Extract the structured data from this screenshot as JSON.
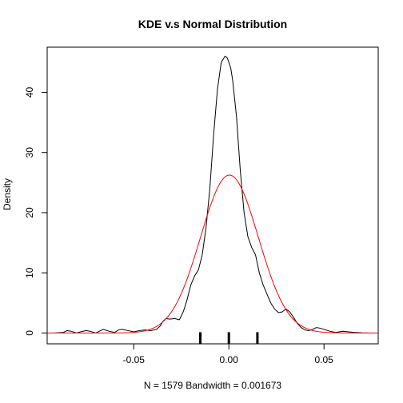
{
  "chart_data": {
    "type": "line",
    "title": "KDE v.s Normal Distribution",
    "xlabel": "N = 1579   Bandwidth = 0.001673",
    "ylabel": "Density",
    "xlim": [
      -0.0955,
      0.0785
    ],
    "ylim": [
      -1.8,
      47.5
    ],
    "x_ticks": [
      -0.05,
      0.0,
      0.05
    ],
    "x_tick_labels": [
      "-0.05",
      "0.00",
      "0.05"
    ],
    "y_ticks": [
      0,
      10,
      20,
      30,
      40
    ],
    "y_tick_labels": [
      "0",
      "10",
      "20",
      "30",
      "40"
    ],
    "grid": false,
    "legend": "none",
    "series": [
      {
        "color": "#000000",
        "x": [
          -0.092,
          -0.087,
          -0.085,
          -0.083,
          -0.08,
          -0.078,
          -0.075,
          -0.073,
          -0.07,
          -0.068,
          -0.066,
          -0.063,
          -0.06,
          -0.058,
          -0.056,
          -0.053,
          -0.05,
          -0.047,
          -0.044,
          -0.041,
          -0.038,
          -0.036,
          -0.0345,
          -0.033,
          -0.031,
          -0.0285,
          -0.026,
          -0.024,
          -0.022,
          -0.02,
          -0.018,
          -0.016,
          -0.014,
          -0.012,
          -0.01,
          -0.008,
          -0.006,
          -0.004,
          -0.002,
          -0.001,
          0.0,
          0.001,
          0.002,
          0.004,
          0.006,
          0.008,
          0.01,
          0.012,
          0.014,
          0.016,
          0.018,
          0.02,
          0.022,
          0.024,
          0.026,
          0.028,
          0.03,
          0.032,
          0.034,
          0.036,
          0.038,
          0.04,
          0.042,
          0.044,
          0.046,
          0.048,
          0.05,
          0.053,
          0.056,
          0.058,
          0.06,
          0.063,
          0.066,
          0.07,
          0.075
        ],
        "y": [
          0.0,
          0.1,
          0.4,
          0.3,
          0.0,
          0.2,
          0.4,
          0.3,
          0.0,
          0.3,
          0.6,
          0.3,
          0.1,
          0.5,
          0.6,
          0.4,
          0.2,
          0.4,
          0.5,
          0.4,
          0.6,
          1.2,
          2.0,
          2.4,
          2.3,
          2.4,
          2.2,
          3.5,
          5.5,
          8.0,
          9.5,
          10.5,
          13.0,
          17.5,
          24.0,
          33.0,
          40.5,
          45.0,
          46.0,
          45.8,
          45.0,
          44.0,
          42.0,
          36.0,
          27.0,
          20.0,
          16.0,
          14.2,
          13.0,
          10.0,
          8.0,
          6.5,
          5.0,
          4.0,
          3.4,
          3.5,
          4.0,
          3.5,
          2.6,
          1.6,
          0.9,
          0.5,
          0.4,
          0.6,
          0.9,
          0.8,
          0.6,
          0.3,
          0.1,
          0.2,
          0.3,
          0.2,
          0.1,
          0.02,
          0.0
        ]
      },
      {
        "color": "#ff0000",
        "distribution": "normal",
        "mean": 0.0003,
        "sd": 0.0152,
        "x_range": [
          -0.0955,
          0.0785
        ]
      }
    ],
    "rug_ticks": [
      -0.015,
      0.0,
      0.015
    ]
  }
}
